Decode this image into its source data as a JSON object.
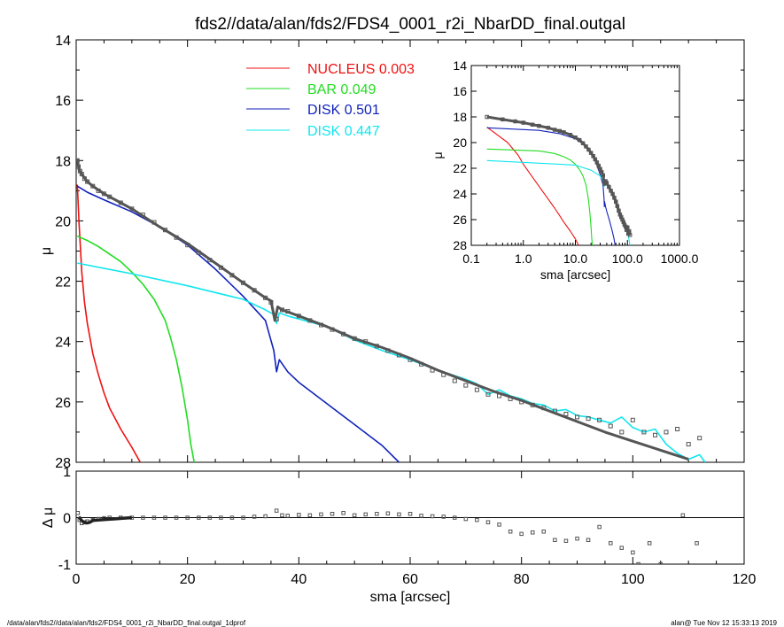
{
  "colors": {
    "background": "#ffffff",
    "axis": "#000000",
    "data_points": "#555555",
    "model": "#555555",
    "nucleus": "#ee1111",
    "bar": "#22dd22",
    "disk1": "#1122bb",
    "disk2": "#11e6ee",
    "residual": "#777777"
  },
  "page": {
    "title": "fds2//data/alan/fds2/FDS4_0001_r2i_NbarDD_final.outgal",
    "footer_left": "/data/alan/fds2//data/alan/fds2/FDS4_0001_r2i_NbarDD_final.outgal_1dprof",
    "footer_right": "alan@  Tue Nov 12 15:33:13 2019"
  },
  "legend": [
    {
      "name": "NUCLEUS",
      "value": "0.003",
      "color": "#ee1111"
    },
    {
      "name": "BAR",
      "value": "0.049",
      "color": "#22dd22"
    },
    {
      "name": "DISK",
      "value": "0.501",
      "color": "#1122bb"
    },
    {
      "name": "DISK",
      "value": "0.447",
      "color": "#11e6ee"
    }
  ],
  "chart_data": [
    {
      "id": "main",
      "type": "scatter",
      "xlabel": "sma [arcsec]",
      "ylabel": "μ",
      "xlim": [
        0,
        120
      ],
      "ylim": [
        28,
        14
      ],
      "xticks": [
        "0",
        "20",
        "40",
        "60",
        "80",
        "100",
        "120"
      ],
      "yticks": [
        "14",
        "16",
        "18",
        "20",
        "22",
        "24",
        "26",
        "28"
      ],
      "observed": {
        "x": [
          0.2,
          0.4,
          0.7,
          1,
          1.5,
          2,
          3,
          4,
          5,
          6,
          8,
          10,
          12,
          14,
          16,
          18,
          20,
          22,
          24,
          26,
          28,
          30,
          32,
          34,
          35,
          36,
          37,
          38,
          40,
          42,
          44,
          46,
          48,
          50,
          52,
          54,
          56,
          58,
          60,
          62,
          64,
          66,
          68,
          70,
          72,
          74,
          76,
          78,
          80,
          82,
          84,
          86,
          88,
          90,
          92,
          94,
          96,
          98,
          100,
          102,
          104,
          106,
          108,
          110,
          112
        ],
        "y": [
          18.0,
          18.2,
          18.35,
          18.45,
          18.6,
          18.7,
          18.85,
          19.0,
          19.1,
          19.2,
          19.4,
          19.6,
          19.8,
          20.05,
          20.3,
          20.55,
          20.8,
          21.05,
          21.3,
          21.55,
          21.8,
          22.05,
          22.3,
          22.55,
          22.7,
          23.25,
          22.95,
          23.0,
          23.15,
          23.3,
          23.45,
          23.6,
          23.75,
          23.9,
          24.0,
          24.15,
          24.3,
          24.45,
          24.6,
          24.75,
          24.95,
          25.1,
          25.3,
          25.45,
          25.6,
          25.75,
          25.8,
          25.9,
          26.0,
          26.1,
          26.2,
          26.3,
          26.4,
          26.5,
          26.55,
          26.6,
          26.8,
          27.0,
          26.6,
          27.0,
          27.1,
          27.0,
          26.9,
          27.4,
          27.2
        ]
      },
      "model_total": {
        "x": [
          0.2,
          0.5,
          1,
          2,
          3,
          5,
          8,
          10,
          15,
          20,
          25,
          30,
          34,
          35,
          35.7,
          36.2,
          37,
          40,
          45,
          50,
          55,
          60,
          65,
          70,
          75,
          80,
          85,
          90,
          95,
          100,
          105,
          110
        ],
        "y": [
          17.95,
          18.3,
          18.45,
          18.7,
          18.85,
          19.1,
          19.4,
          19.6,
          20.2,
          20.75,
          21.4,
          22.05,
          22.55,
          22.65,
          23.3,
          22.85,
          22.95,
          23.15,
          23.5,
          23.9,
          24.2,
          24.55,
          24.95,
          25.3,
          25.65,
          25.95,
          26.3,
          26.65,
          27.0,
          27.3,
          27.6,
          27.9
        ]
      },
      "series": [
        {
          "name": "NUCLEUS",
          "color": "#ee1111",
          "x": [
            0.2,
            0.5,
            0.8,
            1,
            1.5,
            2,
            3,
            4,
            5,
            6,
            8,
            10,
            11.5
          ],
          "y": [
            18.8,
            20.0,
            21.0,
            21.7,
            22.7,
            23.4,
            24.4,
            25.1,
            25.7,
            26.2,
            26.9,
            27.5,
            28.0
          ]
        },
        {
          "name": "BAR",
          "color": "#22dd22",
          "x": [
            0.2,
            2,
            4,
            6,
            8,
            10,
            12,
            14,
            16,
            17,
            18,
            19,
            20,
            20.6,
            21.2
          ],
          "y": [
            20.5,
            20.65,
            20.85,
            21.1,
            21.35,
            21.7,
            22.1,
            22.6,
            23.3,
            23.9,
            24.6,
            25.5,
            26.6,
            27.4,
            28.0
          ]
        },
        {
          "name": "DISK",
          "color": "#1122bb",
          "x": [
            0.2,
            2,
            5,
            10,
            15,
            20,
            25,
            30,
            34,
            35.5,
            36,
            36.5,
            38,
            40,
            45,
            50,
            55,
            58
          ],
          "y": [
            18.85,
            19.05,
            19.3,
            19.7,
            20.2,
            20.8,
            21.6,
            22.5,
            23.3,
            24.3,
            25.0,
            24.6,
            25.0,
            25.35,
            26.05,
            26.75,
            27.45,
            28.0
          ]
        },
        {
          "name": "DISK",
          "color": "#11e6ee",
          "x": [
            0.2,
            10,
            20,
            30,
            34,
            35.5,
            36,
            36.5,
            38,
            45,
            50,
            55,
            60,
            65,
            70,
            72,
            74,
            76,
            78,
            80,
            82,
            84,
            86,
            88,
            90,
            92,
            94,
            96,
            98,
            100,
            102,
            104,
            106,
            108,
            110,
            112,
            113
          ],
          "y": [
            21.4,
            21.75,
            22.15,
            22.6,
            22.95,
            23.1,
            23.4,
            23.05,
            23.15,
            23.5,
            23.95,
            24.3,
            24.6,
            24.95,
            25.25,
            25.4,
            25.75,
            25.6,
            25.8,
            25.9,
            26.05,
            26.1,
            26.3,
            26.25,
            26.45,
            26.5,
            26.6,
            26.7,
            26.5,
            26.85,
            27.0,
            26.9,
            27.4,
            27.7,
            27.9,
            27.75,
            28.0
          ]
        }
      ]
    },
    {
      "id": "inset",
      "type": "line",
      "xscale": "log",
      "xlabel": "sma [arcsec]",
      "ylabel": "μ",
      "xlim": [
        0.1,
        1000
      ],
      "ylim": [
        28,
        14
      ],
      "xticks": [
        "0.1",
        "1.0",
        "10.0",
        "100.0",
        "1000.0"
      ],
      "yticks": [
        "14",
        "16",
        "18",
        "20",
        "22",
        "24",
        "26",
        "28"
      ],
      "observed": {
        "x": [
          0.2,
          0.4,
          0.7,
          1,
          1.5,
          2,
          3,
          4,
          5,
          6,
          8,
          10,
          12,
          14,
          16,
          18,
          20,
          22,
          24,
          26,
          28,
          30,
          32,
          34,
          36,
          38,
          40,
          44,
          48,
          52,
          56,
          60,
          64,
          68,
          72,
          76,
          80,
          84,
          88,
          92,
          96,
          100,
          104,
          108,
          112
        ],
        "y": [
          18.0,
          18.2,
          18.35,
          18.45,
          18.6,
          18.7,
          18.85,
          19.0,
          19.1,
          19.2,
          19.4,
          19.6,
          19.8,
          20.05,
          20.3,
          20.55,
          20.8,
          21.05,
          21.3,
          21.55,
          21.8,
          22.05,
          22.3,
          22.55,
          23.2,
          23.0,
          23.15,
          23.45,
          23.75,
          24.0,
          24.3,
          24.6,
          24.95,
          25.3,
          25.6,
          25.8,
          26.0,
          26.2,
          26.4,
          26.55,
          26.8,
          26.6,
          27.1,
          26.9,
          27.2
        ]
      },
      "series": [
        {
          "name": "NUCLEUS",
          "color": "#ee1111",
          "x": [
            0.2,
            0.5,
            0.8,
            1,
            1.5,
            2,
            3,
            4,
            5,
            6,
            8,
            10,
            11.5
          ],
          "y": [
            18.8,
            20.0,
            21.0,
            21.7,
            22.7,
            23.4,
            24.4,
            25.1,
            25.7,
            26.2,
            26.9,
            27.5,
            28.0
          ]
        },
        {
          "name": "BAR",
          "color": "#22dd22",
          "x": [
            0.2,
            2,
            4,
            6,
            8,
            10,
            12,
            14,
            16,
            17,
            18,
            19,
            20,
            20.6,
            21.2
          ],
          "y": [
            20.5,
            20.65,
            20.85,
            21.1,
            21.35,
            21.7,
            22.1,
            22.6,
            23.3,
            23.9,
            24.6,
            25.5,
            26.6,
            27.4,
            28.0
          ]
        },
        {
          "name": "DISK",
          "color": "#1122bb",
          "x": [
            0.2,
            2,
            5,
            10,
            15,
            20,
            25,
            30,
            34,
            35.5,
            36,
            36.5,
            38,
            40,
            45,
            50,
            55,
            58
          ],
          "y": [
            18.85,
            19.05,
            19.3,
            19.7,
            20.2,
            20.8,
            21.6,
            22.5,
            23.3,
            24.3,
            25.0,
            24.6,
            25.0,
            25.35,
            26.05,
            26.75,
            27.45,
            28.0
          ]
        },
        {
          "name": "DISK",
          "color": "#11e6ee",
          "x": [
            0.2,
            10,
            20,
            30,
            34,
            36,
            38,
            45,
            50,
            55,
            60,
            65,
            70,
            74,
            78,
            82,
            86,
            90,
            94,
            98,
            102,
            106,
            110,
            113
          ],
          "y": [
            21.4,
            21.75,
            22.15,
            22.6,
            22.95,
            23.4,
            23.15,
            23.5,
            23.95,
            24.3,
            24.6,
            24.95,
            25.25,
            25.75,
            25.8,
            26.05,
            26.3,
            26.45,
            26.6,
            26.5,
            27.0,
            27.4,
            27.9,
            28.0
          ]
        }
      ]
    },
    {
      "id": "residual",
      "type": "scatter",
      "xlabel": "sma [arcsec]",
      "ylabel": "Δ μ",
      "xlim": [
        0,
        120
      ],
      "ylim": [
        -1,
        1
      ],
      "xticks": [
        "0",
        "20",
        "40",
        "60",
        "80",
        "100",
        "120"
      ],
      "yticks": [
        "1",
        "0",
        "-1"
      ],
      "x": [
        0.3,
        0.6,
        1,
        1.5,
        2,
        3,
        4,
        5,
        6,
        8,
        10,
        12,
        14,
        16,
        18,
        20,
        22,
        24,
        26,
        28,
        30,
        32,
        34,
        36,
        37,
        38,
        40,
        42,
        44,
        46,
        48,
        50,
        52,
        54,
        56,
        58,
        60,
        62,
        64,
        66,
        68,
        70,
        72,
        74,
        76,
        78,
        80,
        82,
        84,
        86,
        88,
        90,
        92,
        94,
        96,
        98,
        100,
        101,
        103,
        105,
        109,
        111.5
      ],
      "y": [
        0.1,
        -0.05,
        -0.12,
        -0.1,
        -0.08,
        -0.05,
        -0.03,
        -0.01,
        0,
        0,
        0,
        0,
        0,
        0,
        0,
        0,
        0,
        0,
        0,
        0,
        0,
        0.02,
        0.03,
        0.15,
        0.05,
        0.04,
        0.06,
        0.05,
        0.07,
        0.08,
        0.1,
        0.05,
        0.07,
        0.08,
        0.09,
        0.07,
        0.08,
        0.04,
        0.03,
        0.02,
        0.0,
        -0.03,
        -0.05,
        -0.1,
        -0.15,
        -0.3,
        -0.35,
        -0.32,
        -0.3,
        -0.48,
        -0.5,
        -0.45,
        -0.48,
        -0.2,
        -0.55,
        -0.65,
        -0.75,
        -1.0,
        -0.55,
        -1.0,
        0.05,
        -0.55
      ]
    }
  ]
}
